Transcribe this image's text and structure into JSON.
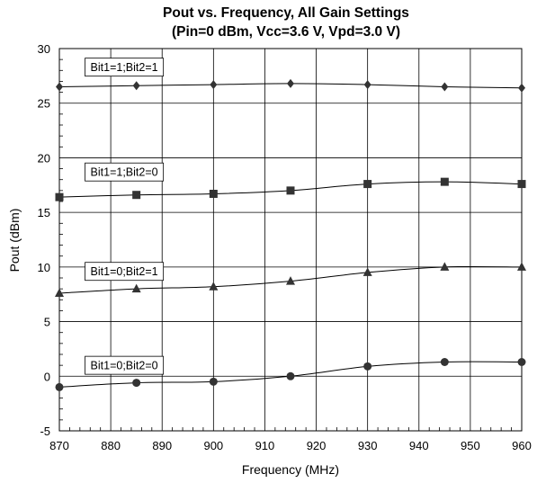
{
  "chart_data": {
    "type": "line",
    "title": "Pout vs. Frequency, All Gain Settings",
    "subtitle": "(Pin=0 dBm, Vcc=3.6 V, Vpd=3.0 V)",
    "xlabel": "Frequency (MHz)",
    "ylabel": "Pout (dBm)",
    "xlim": [
      870,
      960
    ],
    "ylim": [
      -5,
      30
    ],
    "xticks": [
      870,
      880,
      890,
      900,
      910,
      920,
      930,
      940,
      950,
      960
    ],
    "yticks": [
      -5,
      0,
      5,
      10,
      15,
      20,
      25,
      30
    ],
    "grid": "major lines every 10 MHz and 5 dBm",
    "legend": "inline labels above each curve",
    "x": [
      870,
      885,
      900,
      915,
      930,
      945,
      960
    ],
    "series": [
      {
        "name": "Bit1=1;Bit2=1",
        "marker": "diamond",
        "values": [
          26.5,
          26.6,
          26.7,
          26.8,
          26.7,
          26.5,
          26.4
        ]
      },
      {
        "name": "Bit1=1;Bit2=0",
        "marker": "square",
        "values": [
          16.4,
          16.6,
          16.7,
          17.0,
          17.6,
          17.8,
          17.6
        ]
      },
      {
        "name": "Bit1=0;Bit2=1",
        "marker": "triangle",
        "values": [
          7.6,
          8.0,
          8.2,
          8.7,
          9.5,
          10.0,
          10.0
        ]
      },
      {
        "name": "Bit1=0;Bit2=0",
        "marker": "circle",
        "values": [
          -1.0,
          -0.6,
          -0.5,
          0.0,
          0.9,
          1.3,
          1.3
        ]
      }
    ],
    "colors": {
      "line": "#000000",
      "marker": "#333333",
      "grid": "#000000",
      "background": "#ffffff"
    }
  }
}
